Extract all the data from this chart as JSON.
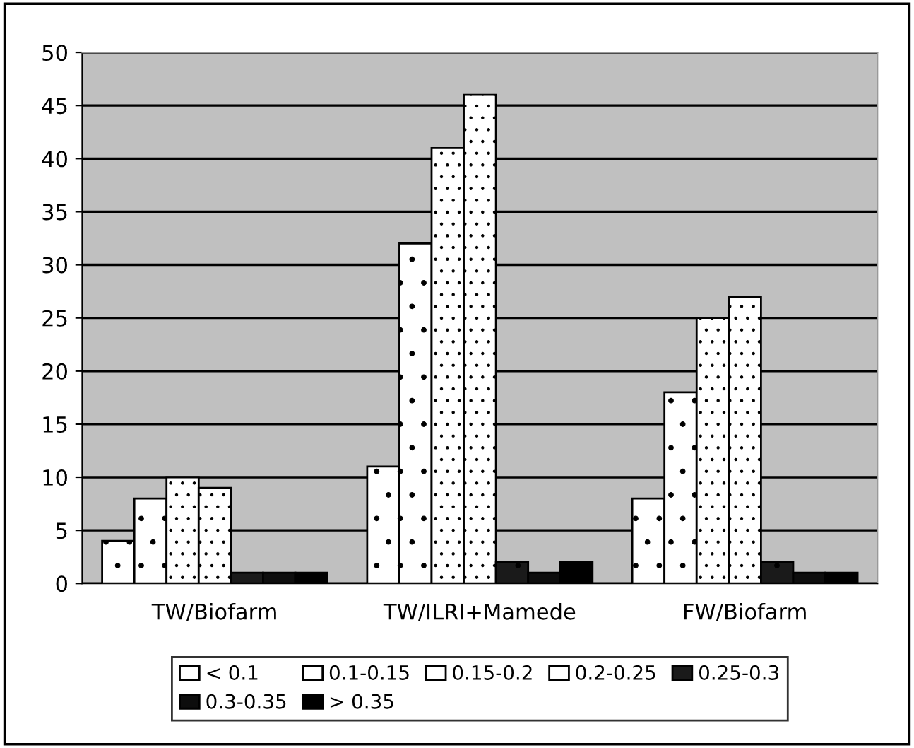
{
  "chart_data": {
    "type": "bar",
    "categories": [
      "TW/Biofarm",
      "TW/ILRI+Mamede",
      "FW/Biofarm"
    ],
    "series": [
      {
        "name": "< 0.1",
        "color": "#ffffff",
        "values": [
          4,
          11,
          8
        ]
      },
      {
        "name": "0.1-0.15",
        "color": "#ffffff",
        "values": [
          8,
          32,
          18
        ]
      },
      {
        "name": "0.15-0.2",
        "color": "#ffffff",
        "values": [
          10,
          41,
          25
        ]
      },
      {
        "name": "0.2-0.25",
        "color": "#ffffff",
        "values": [
          9,
          46,
          27
        ]
      },
      {
        "name": "0.25-0.3",
        "color": "#1a1a1a",
        "values": [
          1,
          2,
          2
        ]
      },
      {
        "name": "0.3-0.35",
        "color": "#0d0d0d",
        "values": [
          1,
          1,
          1
        ]
      },
      {
        "name": "> 0.35",
        "color": "#000000",
        "values": [
          1,
          2,
          1
        ]
      }
    ],
    "ylim": [
      0,
      50
    ],
    "yticks": [
      0,
      5,
      10,
      15,
      20,
      25,
      30,
      35,
      40,
      45,
      50
    ],
    "grid": "y",
    "legend": "bottom"
  }
}
